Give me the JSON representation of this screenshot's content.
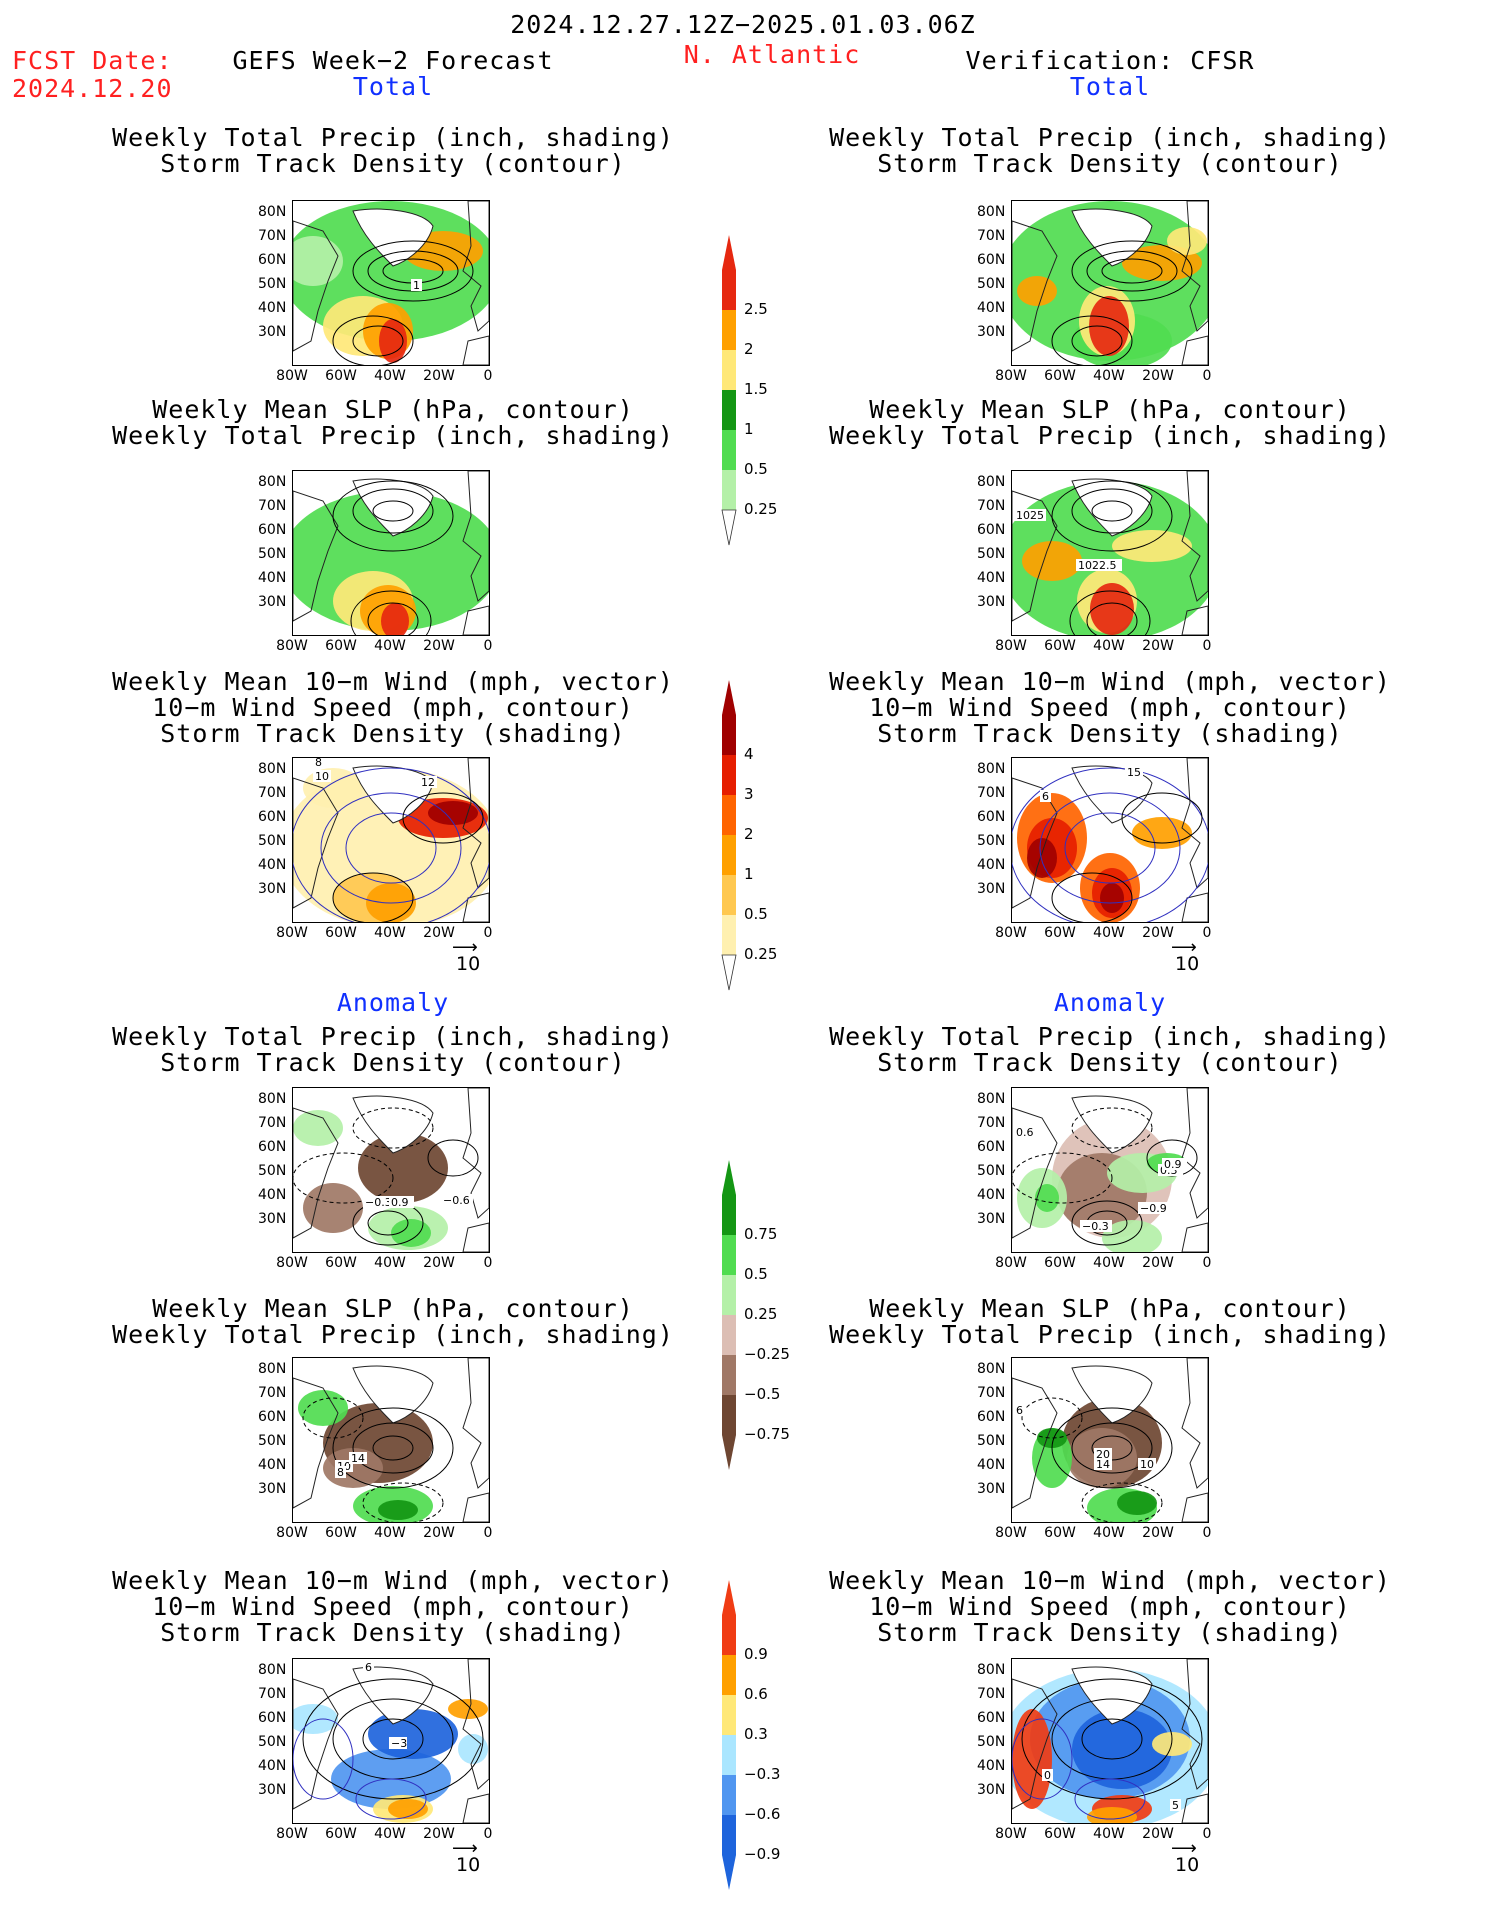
{
  "header": {
    "date_range": "2024.12.27.12Z−2025.01.03.06Z",
    "fcst_label": "FCST Date:",
    "fcst_date": "2024.12.20",
    "left_title": "GEFS Week−2 Forecast",
    "region": "N. Atlantic",
    "right_title": "Verification: CFSR"
  },
  "sections": {
    "total": "Total",
    "anomaly": "Anomaly"
  },
  "panel_titles": {
    "precip_storm": [
      "Weekly Total Precip (inch, shading)",
      "Storm Track Density (contour)"
    ],
    "slp_precip": [
      "Weekly Mean SLP (hPa, contour)",
      "Weekly Total Precip (inch, shading)"
    ],
    "wind_storm": [
      "Weekly Mean 10−m Wind (mph, vector)",
      "10−m Wind Speed (mph, contour)",
      "Storm Track Density (shading)"
    ]
  },
  "axes": {
    "lat": [
      "80N",
      "70N",
      "60N",
      "50N",
      "40N",
      "30N"
    ],
    "lon": [
      "80W",
      "60W",
      "40W",
      "20W",
      "0"
    ]
  },
  "vector_ref": "10",
  "colorbars": {
    "precip_total": [
      "0.25",
      "0.5",
      "1",
      "1.5",
      "2",
      "2.5"
    ],
    "storm_total": [
      "0.25",
      "0.5",
      "1",
      "2",
      "3",
      "4"
    ],
    "precip_anom": [
      "−0.75",
      "−0.5",
      "−0.25",
      "0.25",
      "0.5",
      "0.75"
    ],
    "storm_anom": [
      "−0.9",
      "−0.6",
      "−0.3",
      "0.3",
      "0.6",
      "0.9"
    ]
  },
  "contour_labels": {
    "fp_t1": [
      "1"
    ],
    "vf_t2": [
      "1025",
      "1022.5"
    ],
    "fp_t3": [
      "8",
      "10",
      "12"
    ],
    "vf_t3": [
      "15",
      "6"
    ],
    "fp_a1": [
      "−0.3",
      "0.9",
      "−0.6"
    ],
    "vf_a1": [
      "0.6",
      "0.3",
      "0.9",
      "−0.3",
      "−0.9"
    ],
    "fp_a2": [
      "10",
      "14",
      "8"
    ],
    "vf_a2": [
      "20",
      "14",
      "10",
      "6"
    ],
    "fp_a3": [
      "6",
      "−3"
    ],
    "vf_a3": [
      "0",
      "5"
    ]
  },
  "colors": {
    "header_red": "#ff2020",
    "section_blue": "#1030ff",
    "precip": [
      "#b4f0a8",
      "#50dc50",
      "#149614",
      "#ffe878",
      "#ffa000",
      "#e62810"
    ],
    "storm": [
      "#fff0b0",
      "#ffc850",
      "#ffa000",
      "#ff6400",
      "#e61e00",
      "#a00000"
    ],
    "precip_anom": [
      "#6e4632",
      "#a07866",
      "#dcbeb4",
      "#b4f0a8",
      "#50dc50",
      "#149614"
    ],
    "storm_anom": [
      "#1e64dc",
      "#5096f0",
      "#aae6ff",
      "#ffe878",
      "#ffa000",
      "#f03c14"
    ]
  }
}
